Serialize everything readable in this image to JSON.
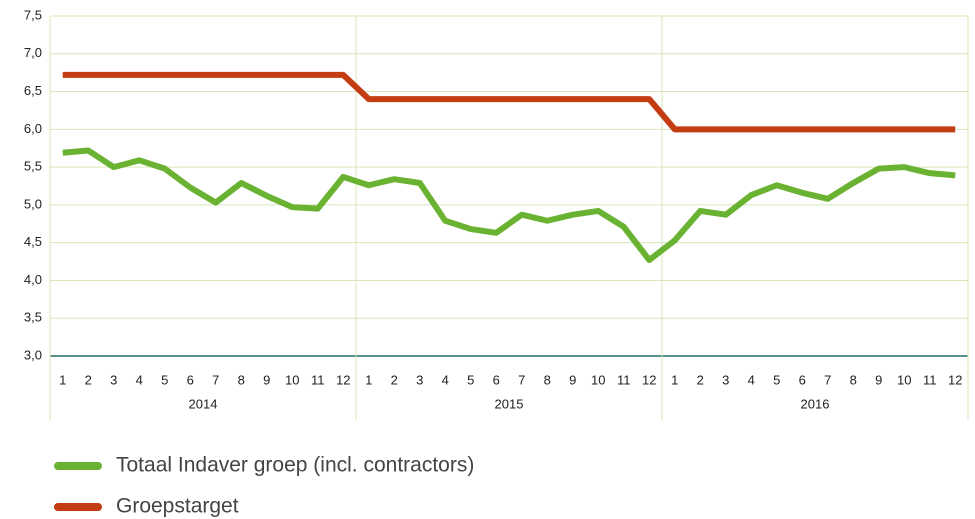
{
  "chart_data": {
    "type": "line",
    "categories": [
      "1",
      "2",
      "3",
      "4",
      "5",
      "6",
      "7",
      "8",
      "9",
      "10",
      "11",
      "12",
      "1",
      "2",
      "3",
      "4",
      "5",
      "6",
      "7",
      "8",
      "9",
      "10",
      "11",
      "12",
      "1",
      "2",
      "3",
      "4",
      "5",
      "6",
      "7",
      "8",
      "9",
      "10",
      "11",
      "12"
    ],
    "year_groups": [
      "2014",
      "2015",
      "2016"
    ],
    "series": [
      {
        "name": "Totaal Indaver groep (incl. contractors)",
        "color": "#6ab332",
        "values": [
          5.69,
          5.72,
          5.5,
          5.59,
          5.48,
          5.23,
          5.03,
          5.29,
          5.12,
          4.97,
          4.95,
          5.37,
          5.26,
          5.34,
          5.29,
          4.79,
          4.68,
          4.63,
          4.87,
          4.79,
          4.87,
          4.92,
          4.71,
          4.27,
          4.53,
          4.92,
          4.87,
          5.13,
          5.26,
          5.16,
          5.08,
          5.29,
          5.48,
          5.5,
          5.42,
          5.39
        ]
      },
      {
        "name": "Groepstarget",
        "color": "#c43c12",
        "values": [
          6.72,
          6.72,
          6.72,
          6.72,
          6.72,
          6.72,
          6.72,
          6.72,
          6.72,
          6.72,
          6.72,
          6.72,
          6.4,
          6.4,
          6.4,
          6.4,
          6.4,
          6.4,
          6.4,
          6.4,
          6.4,
          6.4,
          6.4,
          6.4,
          6.0,
          6.0,
          6.0,
          6.0,
          6.0,
          6.0,
          6.0,
          6.0,
          6.0,
          6.0,
          6.0,
          6.0
        ]
      }
    ],
    "ylim": [
      3.0,
      7.5
    ],
    "yticks": [
      {
        "value": 3.0,
        "label": "3,0"
      },
      {
        "value": 3.5,
        "label": "3,5"
      },
      {
        "value": 4.0,
        "label": "4,0"
      },
      {
        "value": 4.5,
        "label": "4,5"
      },
      {
        "value": 5.0,
        "label": "5,0"
      },
      {
        "value": 5.5,
        "label": "5,5"
      },
      {
        "value": 6.0,
        "label": "6,0"
      },
      {
        "value": 6.5,
        "label": "6,5"
      },
      {
        "value": 7.0,
        "label": "7,0"
      },
      {
        "value": 7.5,
        "label": "7,5"
      }
    ],
    "grid": true
  }
}
